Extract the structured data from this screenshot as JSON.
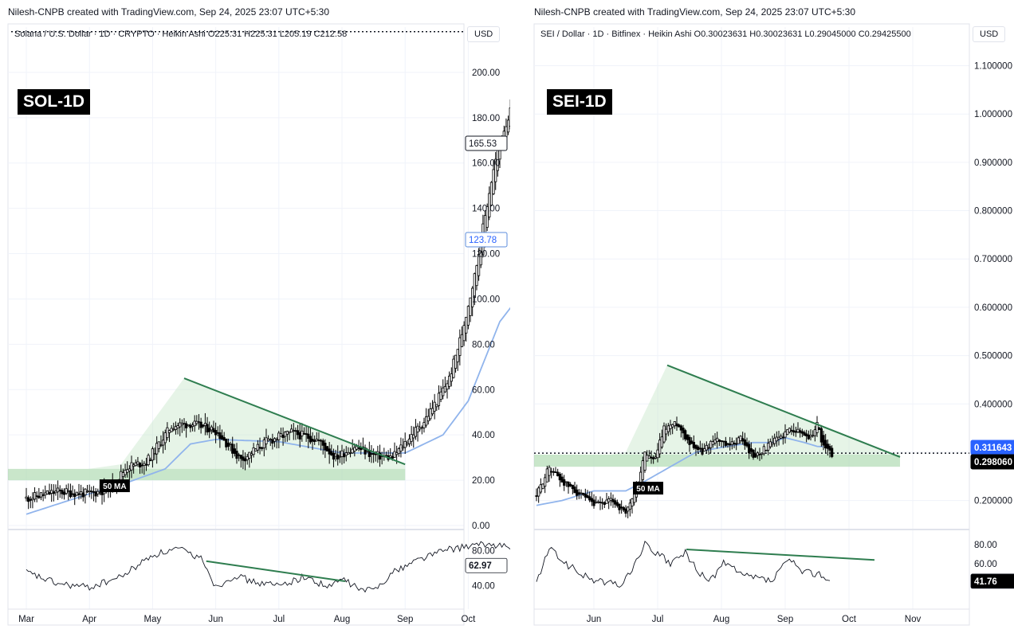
{
  "left": {
    "creator": "Nilesh-CNPB created with TradingView.com, Sep 24, 2025 23:07 UTC+5:30",
    "legend": "Solana / U.S. Dollar · 1D · CRYPTO · Heikin Ashi  O225.31  H225.31  L205.19  C212.58",
    "badge": "SOL-1D",
    "currency": "USD",
    "ma_label": "50 MA"
  },
  "right": {
    "creator": "Nilesh-CNPB created with TradingView.com, Sep 24, 2025 23:07 UTC+5:30",
    "legend": "SEI / Dollar · 1D · Bitfinex · Heikin Ashi  O0.30023631  H0.30023631  L0.29045000  C0.29425500",
    "badge": "SEI-1D",
    "currency": "USD",
    "ma_label": "50 MA"
  },
  "chart_data": [
    {
      "type": "candlestick",
      "title": "Solana / U.S. Dollar · 1D · CRYPTO · Heikin Ashi",
      "ylim": [
        0,
        220
      ],
      "y_ticks": [
        "0.00",
        "20.00",
        "40.00",
        "60.00",
        "80.00",
        "100.00",
        "120.00",
        "140.00",
        "160.00",
        "180.00",
        "200.00"
      ],
      "x_ticks": [
        "Mar",
        "Apr",
        "May",
        "Jun",
        "Jul",
        "Aug",
        "Sep",
        "Oct"
      ],
      "price_path": {
        "months": [
          0,
          0.5,
          1,
          1.3,
          1.6,
          1.9,
          2.3,
          2.6,
          3.0,
          3.4,
          3.8,
          4.2,
          4.6,
          4.9,
          5.2,
          5.5,
          5.8,
          6.1,
          6.3,
          6.5,
          6.7,
          6.9,
          7.1,
          7.35,
          7.5,
          7.7,
          7.8,
          7.85,
          7.9,
          8.0,
          8.15,
          8.35,
          8.5,
          8.65,
          8.8
        ],
        "close": [
          12,
          15,
          14,
          16,
          26,
          28,
          44,
          45,
          42,
          29,
          37,
          41,
          38,
          30,
          35,
          31,
          30,
          40,
          46,
          55,
          65,
          85,
          110,
          150,
          170,
          185,
          182,
          170,
          160,
          155,
          150,
          138,
          135,
          142,
          165
        ]
      },
      "ma50": {
        "months": [
          0,
          1,
          1.5,
          2.2,
          2.6,
          3.0,
          4.0,
          5.0,
          6.0,
          6.6,
          7.0,
          7.5,
          8.0,
          8.5,
          8.8
        ],
        "values": [
          5,
          14,
          18,
          25,
          36,
          38,
          37,
          32,
          32,
          40,
          55,
          90,
          108,
          118,
          123.78
        ]
      },
      "price_label": "165.53",
      "ma_value_label": "123.78",
      "dotted_level": 218,
      "triangle": [
        [
          1.5,
          27
        ],
        [
          2.5,
          65
        ],
        [
          6.0,
          27
        ],
        [
          6.0,
          20
        ],
        [
          -0.1,
          20
        ]
      ],
      "trendline": [
        [
          2.5,
          65
        ],
        [
          6.0,
          27
        ]
      ],
      "support_zone": [
        20,
        25
      ],
      "rsi": {
        "ylim": [
          25,
          95
        ],
        "ticks": [
          "40.00",
          "80.00"
        ],
        "months": [
          0,
          0.5,
          1,
          1.5,
          2.0,
          2.4,
          2.8,
          3.0,
          3.3,
          3.6,
          4.0,
          4.4,
          4.8,
          5.0,
          5.3,
          5.5,
          5.8,
          6.2,
          6.6,
          7.0,
          7.3,
          7.6,
          7.8,
          8.0,
          8.3,
          8.6,
          8.8
        ],
        "values": [
          55,
          42,
          38,
          50,
          75,
          82,
          70,
          38,
          52,
          44,
          40,
          50,
          38,
          48,
          35,
          35,
          55,
          70,
          80,
          85,
          87,
          86,
          65,
          50,
          45,
          60,
          62.97
        ],
        "label": "62.97",
        "trendline": [
          [
            2.85,
            68
          ],
          [
            5.05,
            45
          ]
        ]
      }
    },
    {
      "type": "candlestick",
      "title": "SEI / Dollar · 1D · Bitfinex · Heikin Ashi",
      "ylim": [
        0.14,
        1.18
      ],
      "y_ticks": [
        "0.200000",
        "0.300000",
        "0.400000",
        "0.500000",
        "0.600000",
        "0.700000",
        "0.800000",
        "0.900000",
        "1.000000",
        "1.100000"
      ],
      "x_ticks": [
        "Jun",
        "Jul",
        "Aug",
        "Sep",
        "Oct",
        "Nov"
      ],
      "price_path": {
        "months": [
          -0.9,
          -0.7,
          -0.5,
          -0.3,
          0,
          0.3,
          0.5,
          0.7,
          0.8,
          0.95,
          1.1,
          1.3,
          1.5,
          1.7,
          1.9,
          2.1,
          2.3,
          2.5,
          2.7,
          2.9,
          3.1,
          3.25,
          3.4,
          3.5,
          3.6,
          3.75
        ],
        "close": [
          0.21,
          0.27,
          0.24,
          0.22,
          0.19,
          0.2,
          0.17,
          0.24,
          0.3,
          0.28,
          0.35,
          0.36,
          0.32,
          0.3,
          0.33,
          0.31,
          0.33,
          0.29,
          0.31,
          0.33,
          0.35,
          0.34,
          0.33,
          0.36,
          0.31,
          0.295
        ]
      },
      "ma50": {
        "months": [
          -0.9,
          -0.5,
          0,
          0.5,
          0.8,
          1.2,
          1.6,
          2.0,
          2.5,
          2.8,
          3.0,
          3.3,
          3.5,
          3.6
        ],
        "values": [
          0.19,
          0.2,
          0.22,
          0.22,
          0.24,
          0.27,
          0.3,
          0.31,
          0.32,
          0.32,
          0.33,
          0.32,
          0.312,
          0.3116
        ]
      },
      "price_label": "0.298060",
      "ma_value_label": "0.311643",
      "dotted_level": 0.2981,
      "triangle": [
        [
          0.5,
          0.3
        ],
        [
          1.15,
          0.48
        ],
        [
          4.8,
          0.29
        ],
        [
          4.8,
          0.27
        ],
        [
          -0.9,
          0.27
        ]
      ],
      "trendline": [
        [
          1.15,
          0.48
        ],
        [
          4.8,
          0.29
        ]
      ],
      "support_zone": [
        0.27,
        0.295
      ],
      "rsi": {
        "ylim": [
          25,
          90
        ],
        "ticks": [
          "40.00",
          "60.00",
          "80.00"
        ],
        "months": [
          -0.9,
          -0.7,
          -0.4,
          -0.1,
          0.2,
          0.45,
          0.6,
          0.8,
          1.0,
          1.2,
          1.45,
          1.65,
          1.85,
          2.05,
          2.3,
          2.55,
          2.8,
          3.05,
          3.25,
          3.45,
          3.55,
          3.7
        ],
        "values": [
          40,
          76,
          58,
          45,
          40,
          38,
          55,
          80,
          70,
          60,
          72,
          48,
          44,
          62,
          48,
          45,
          42,
          65,
          52,
          50,
          50,
          41.76
        ],
        "label": "41.76",
        "trendline": [
          [
            1.45,
            75
          ],
          [
            4.4,
            64
          ]
        ]
      }
    }
  ]
}
